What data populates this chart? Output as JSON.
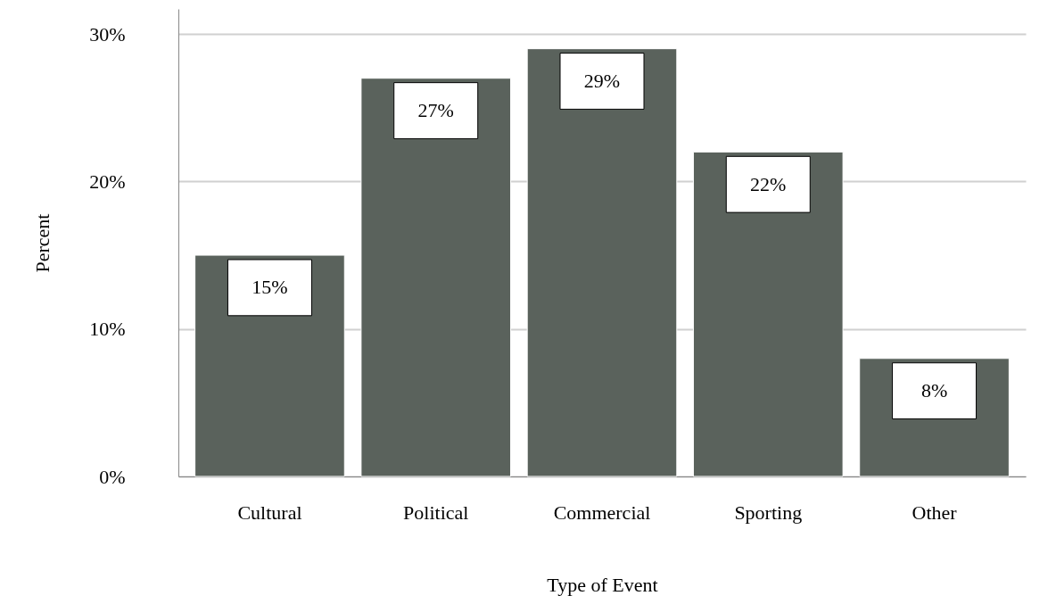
{
  "chart_data": {
    "type": "bar",
    "xlabel": "Type of Event",
    "ylabel": "Percent",
    "categories": [
      "Cultural",
      "Political",
      "Commercial",
      "Sporting",
      "Other"
    ],
    "values": [
      15,
      27,
      29,
      22,
      8
    ],
    "value_labels": [
      "15%",
      "27%",
      "29%",
      "22%",
      "8%"
    ],
    "color": "#5a625c",
    "ylim": [
      0,
      31.7
    ],
    "yticks": [
      {
        "value": 0,
        "label": "0%"
      },
      {
        "value": 10,
        "label": "10%"
      },
      {
        "value": 20,
        "label": "20%"
      },
      {
        "value": 30,
        "label": "30%"
      }
    ],
    "grid": "y"
  }
}
